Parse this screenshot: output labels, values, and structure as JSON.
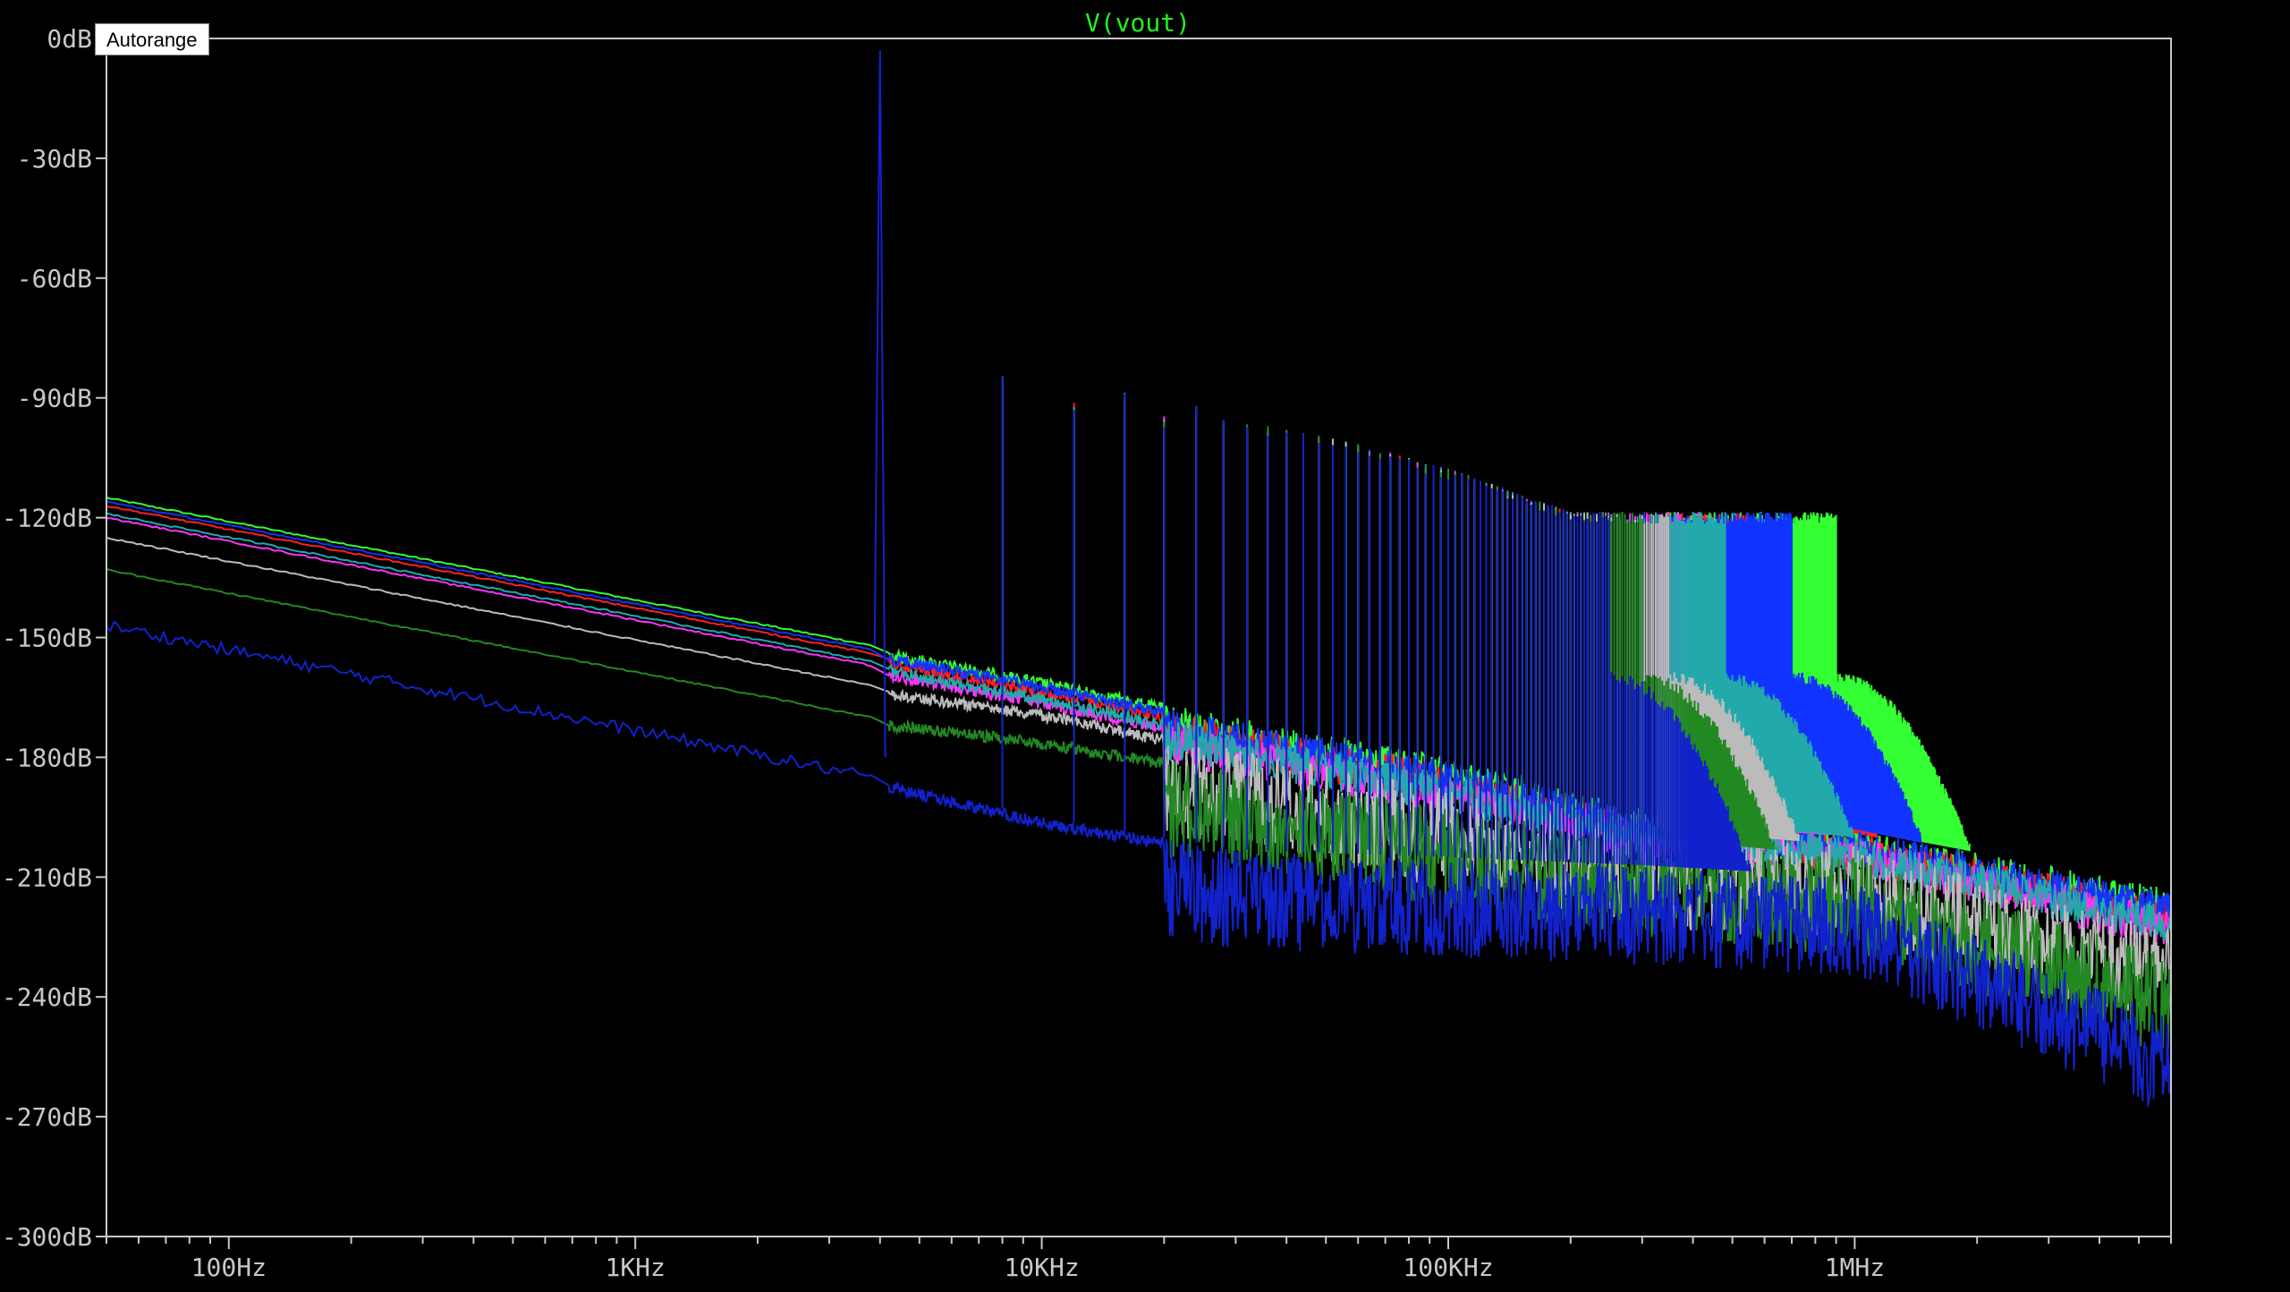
{
  "autorange_label": "Autorange",
  "chart_data": {
    "type": "line",
    "title": "V(vout)",
    "title_color": "#22ee22",
    "xlabel": "",
    "ylabel": "",
    "x_scale": "log",
    "xlim": [
      50,
      6000000
    ],
    "ylim": [
      -300,
      0
    ],
    "grid": false,
    "background": "#000000",
    "x_ticks": [
      {
        "value": 100,
        "label": "100Hz"
      },
      {
        "value": 1000,
        "label": "1KHz"
      },
      {
        "value": 10000,
        "label": "10KHz"
      },
      {
        "value": 100000,
        "label": "100KHz"
      },
      {
        "value": 1000000,
        "label": "1MHz"
      }
    ],
    "y_ticks": [
      {
        "value": 0,
        "label": "0dB"
      },
      {
        "value": -30,
        "label": "-30dB"
      },
      {
        "value": -60,
        "label": "-60dB"
      },
      {
        "value": -90,
        "label": "-90dB"
      },
      {
        "value": -120,
        "label": "-120dB"
      },
      {
        "value": -150,
        "label": "-150dB"
      },
      {
        "value": -180,
        "label": "-180dB"
      },
      {
        "value": -210,
        "label": "-210dB"
      },
      {
        "value": -240,
        "label": "-240dB"
      },
      {
        "value": -270,
        "label": "-270dB"
      },
      {
        "value": -300,
        "label": "-300dB"
      }
    ],
    "fundamental_hz": 4000,
    "fundamental_db": -3,
    "harmonic_peaks_db": [
      {
        "hz": 8000,
        "db": -86
      },
      {
        "hz": 12000,
        "db": -92
      },
      {
        "hz": 16000,
        "db": -90
      },
      {
        "hz": 20000,
        "db": -96
      },
      {
        "hz": 24000,
        "db": -93
      },
      {
        "hz": 28000,
        "db": -97
      },
      {
        "hz": 32000,
        "db": -98
      },
      {
        "hz": 40000,
        "db": -99
      },
      {
        "hz": 60000,
        "db": -103
      },
      {
        "hz": 100000,
        "db": -109
      },
      {
        "hz": 200000,
        "db": -120
      }
    ],
    "series": [
      {
        "color": "#33ff33",
        "floor": [
          [
            50,
            -115
          ],
          [
            3800,
            -152
          ],
          [
            10000,
            -160
          ],
          [
            30000,
            -170
          ],
          [
            100000,
            -180
          ],
          [
            300000,
            -193
          ],
          [
            1000000,
            -198
          ],
          [
            6000000,
            -213
          ]
        ],
        "cutoff_hz": 900000
      },
      {
        "color": "#ff2020",
        "floor": [
          [
            50,
            -117
          ],
          [
            3800,
            -154
          ],
          [
            10000,
            -162
          ],
          [
            30000,
            -172
          ],
          [
            100000,
            -182
          ],
          [
            300000,
            -195
          ],
          [
            1000000,
            -199
          ],
          [
            6000000,
            -215
          ]
        ],
        "cutoff_hz": 550000
      },
      {
        "color": "#1133ff",
        "floor": [
          [
            50,
            -116
          ],
          [
            3800,
            -153
          ],
          [
            10000,
            -161
          ],
          [
            30000,
            -171
          ],
          [
            100000,
            -181
          ],
          [
            300000,
            -194
          ],
          [
            1000000,
            -198
          ],
          [
            6000000,
            -214
          ]
        ],
        "cutoff_hz": 700000
      },
      {
        "color": "#ff33ff",
        "floor": [
          [
            50,
            -120
          ],
          [
            3800,
            -157
          ],
          [
            10000,
            -165
          ],
          [
            30000,
            -175
          ],
          [
            100000,
            -185
          ],
          [
            300000,
            -196
          ],
          [
            1000000,
            -200
          ],
          [
            6000000,
            -218
          ]
        ],
        "cutoff_hz": 420000
      },
      {
        "color": "#22aaaa",
        "floor": [
          [
            50,
            -119
          ],
          [
            3800,
            -156
          ],
          [
            10000,
            -164
          ],
          [
            30000,
            -174
          ],
          [
            100000,
            -184
          ],
          [
            300000,
            -195
          ],
          [
            1000000,
            -200
          ],
          [
            6000000,
            -217
          ]
        ],
        "cutoff_hz": 480000
      },
      {
        "color": "#bbbbbb",
        "floor": [
          [
            50,
            -125
          ],
          [
            3800,
            -162
          ],
          [
            10000,
            -168
          ],
          [
            30000,
            -178
          ],
          [
            100000,
            -188
          ],
          [
            300000,
            -198
          ],
          [
            1000000,
            -202
          ],
          [
            6000000,
            -223
          ]
        ],
        "cutoff_hz": 350000
      },
      {
        "color": "#228822",
        "floor": [
          [
            50,
            -133
          ],
          [
            3800,
            -170
          ],
          [
            10000,
            -175
          ],
          [
            30000,
            -183
          ],
          [
            100000,
            -193
          ],
          [
            300000,
            -200
          ],
          [
            1000000,
            -205
          ],
          [
            6000000,
            -230
          ]
        ],
        "cutoff_hz": 300000
      },
      {
        "color": "#1122cc",
        "floor": [
          [
            50,
            -147
          ],
          [
            3800,
            -185
          ],
          [
            10000,
            -195
          ],
          [
            30000,
            -203
          ],
          [
            100000,
            -205
          ],
          [
            300000,
            -207
          ],
          [
            1000000,
            -210
          ],
          [
            6000000,
            -245
          ]
        ],
        "cutoff_hz": 250000
      }
    ]
  }
}
